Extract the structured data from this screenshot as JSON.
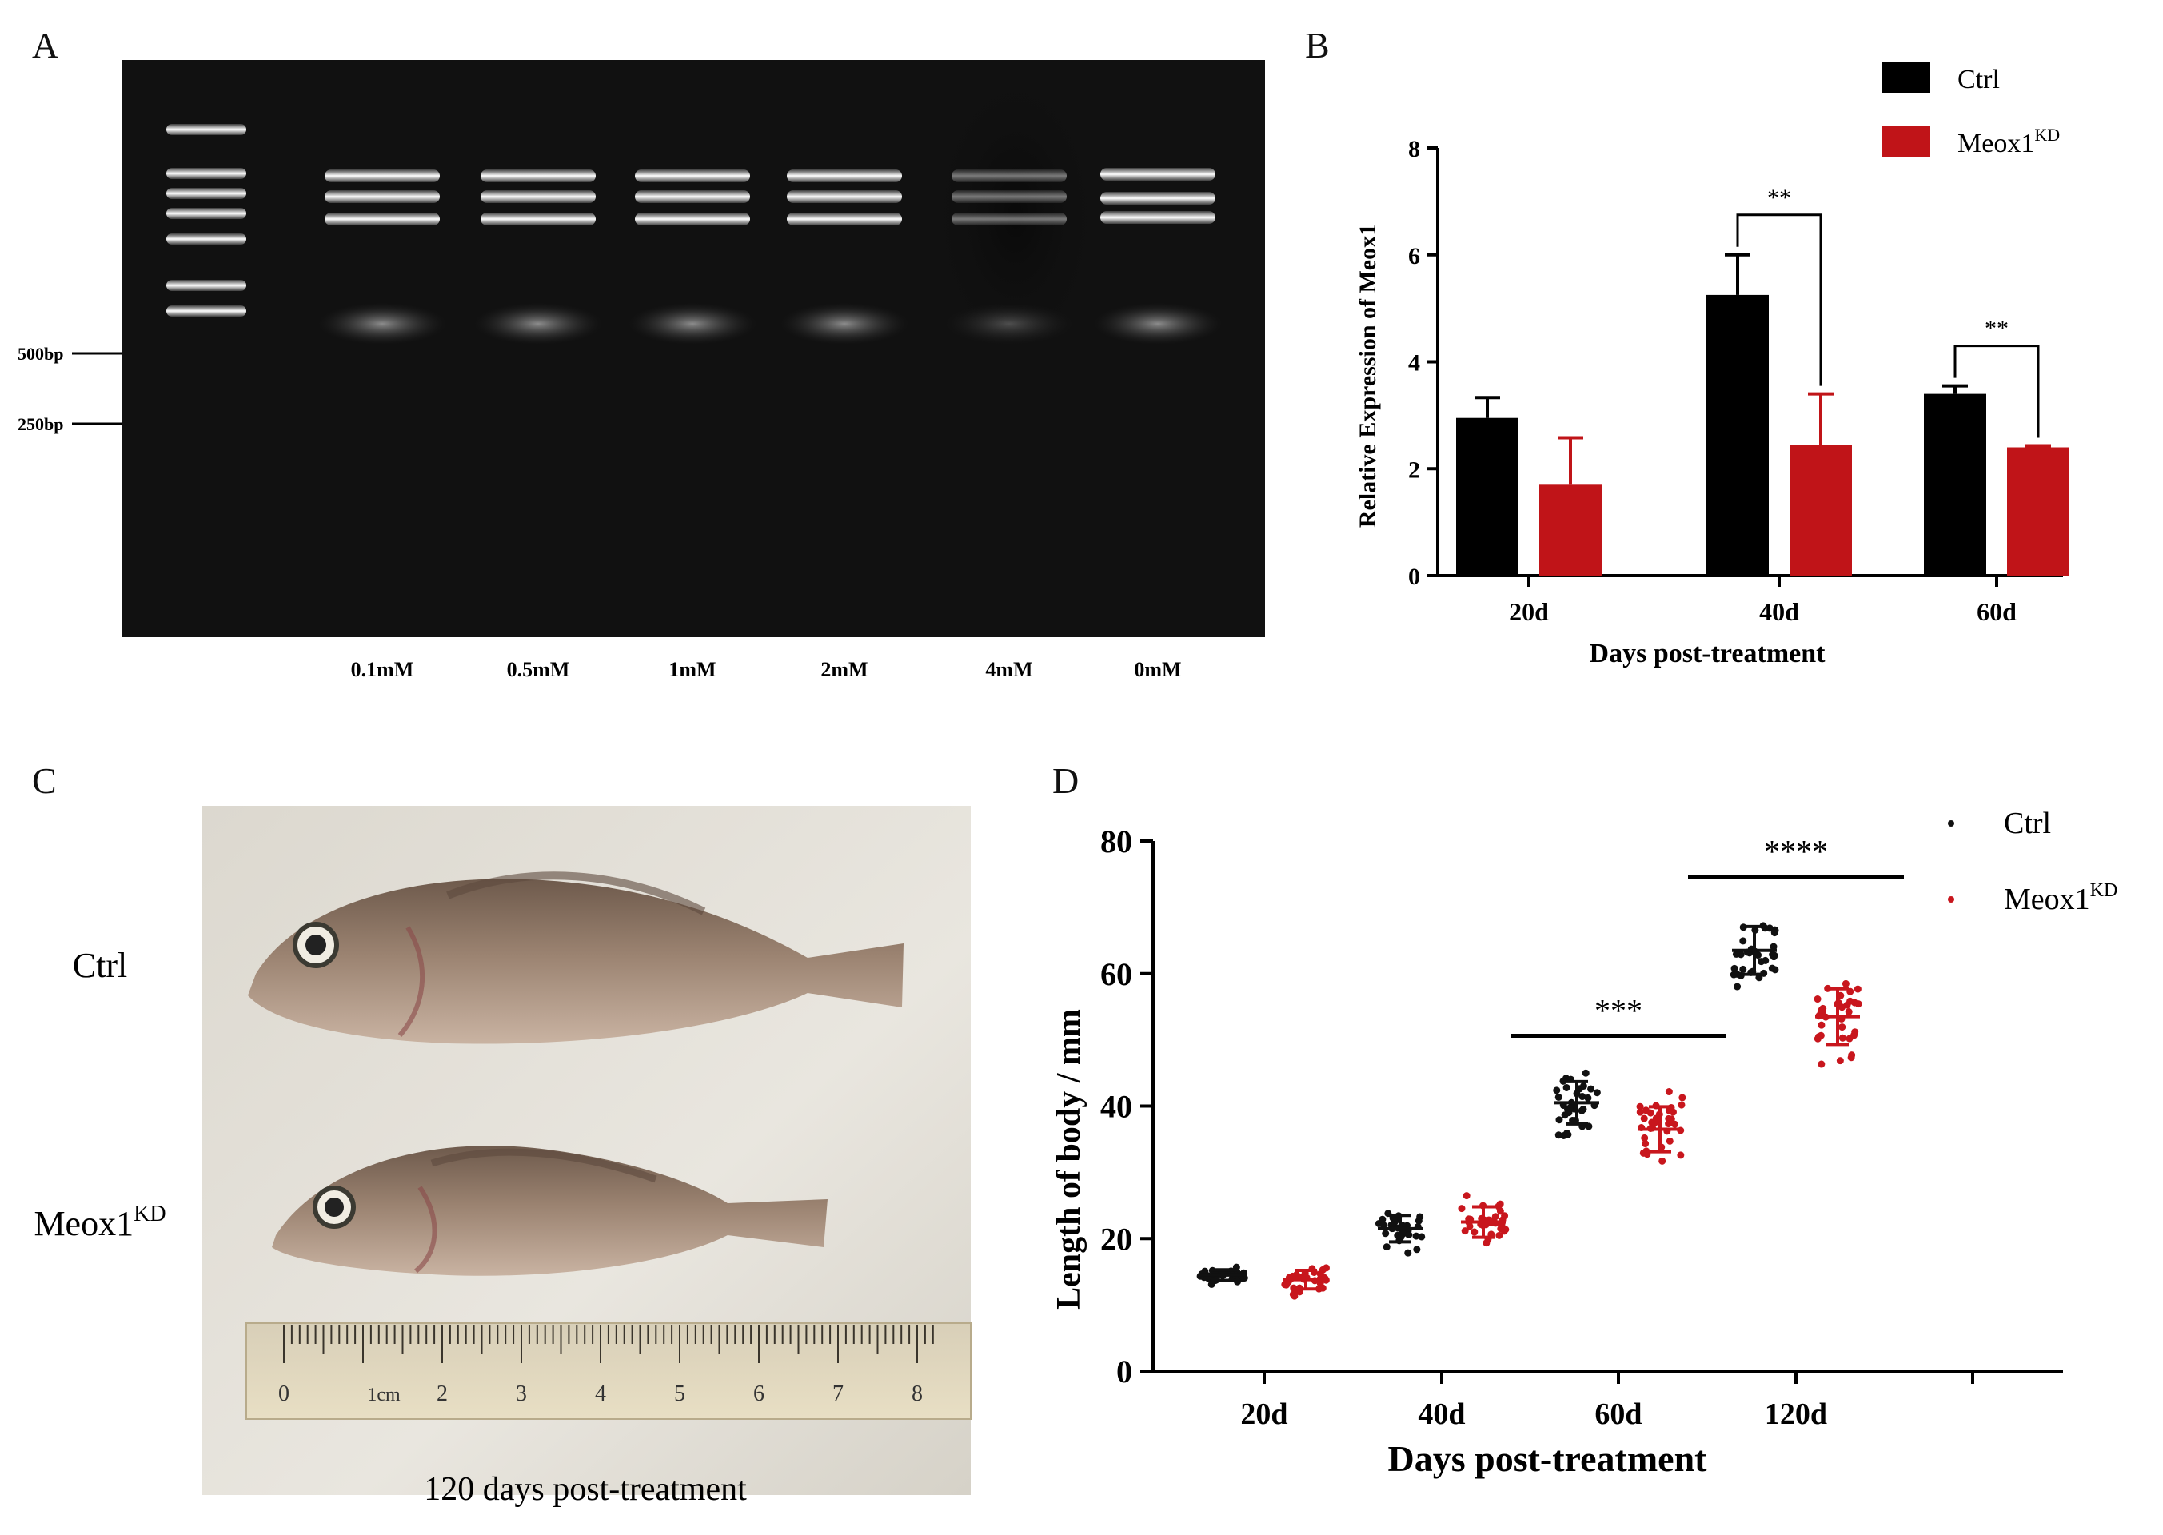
{
  "panels": {
    "A": {
      "letter": "A",
      "markers": [
        "500bp",
        "250bp"
      ],
      "lanes": [
        "0.1mM",
        "0.5mM",
        "1mM",
        "2mM",
        "4mM",
        "0mM"
      ]
    },
    "B": {
      "letter": "B"
    },
    "C": {
      "letter": "C",
      "row_labels": {
        "ctrl": "Ctrl",
        "kd_base": "Meox1",
        "kd_sup": "KD"
      },
      "caption": "120 days post-treatment",
      "ruler_numbers": [
        "0",
        "1cm",
        "2",
        "3",
        "4",
        "5",
        "6",
        "7",
        "8"
      ]
    },
    "D": {
      "letter": "D"
    }
  },
  "chart_data": [
    {
      "panel": "B",
      "type": "bar",
      "categories": [
        "20d",
        "40d",
        "60d"
      ],
      "xlabel": "Days post-treatment",
      "ylabel": "Relative Expression of Meox1",
      "ylim": [
        0,
        8
      ],
      "yticks": [
        0,
        2,
        4,
        6,
        8
      ],
      "legend_position": "top-right",
      "series": [
        {
          "name": "Ctrl",
          "color": "#000000",
          "values": [
            2.95,
            5.25,
            3.4
          ],
          "errors": [
            0.38,
            0.75,
            0.15
          ]
        },
        {
          "name": "Meox1",
          "name_sup": "KD",
          "color": "#c01418",
          "values": [
            1.7,
            2.45,
            2.4
          ],
          "errors": [
            0.88,
            0.95,
            0.03
          ]
        }
      ],
      "significance": [
        {
          "category": "40d",
          "label": "**"
        },
        {
          "category": "60d",
          "label": "**"
        }
      ]
    },
    {
      "panel": "D",
      "type": "scatter",
      "categories": [
        "20d",
        "40d",
        "60d",
        "120d"
      ],
      "xlabel": "Days post-treatment",
      "ylabel": "Length of body / mm",
      "ylim": [
        0,
        80
      ],
      "yticks": [
        0,
        20,
        40,
        60,
        80
      ],
      "legend_position": "top-right",
      "series": [
        {
          "name": "Ctrl",
          "color": "#111111",
          "mean": [
            14.5,
            21.5,
            40.5,
            63.5
          ],
          "sd": [
            0.8,
            2.0,
            3.2,
            3.6
          ],
          "spread": [
            1.6,
            4.5,
            6.5,
            7.5
          ]
        },
        {
          "name": "Meox1",
          "name_sup": "KD",
          "color": "#c8161d",
          "mean": [
            13.8,
            22.5,
            36.5,
            53.5
          ],
          "sd": [
            1.4,
            2.3,
            3.4,
            4.2
          ],
          "spread": [
            3.5,
            5.0,
            7.5,
            8.5
          ]
        }
      ],
      "significance": [
        {
          "category": "60d",
          "label": "***"
        },
        {
          "category": "120d",
          "label": "****"
        }
      ]
    }
  ]
}
